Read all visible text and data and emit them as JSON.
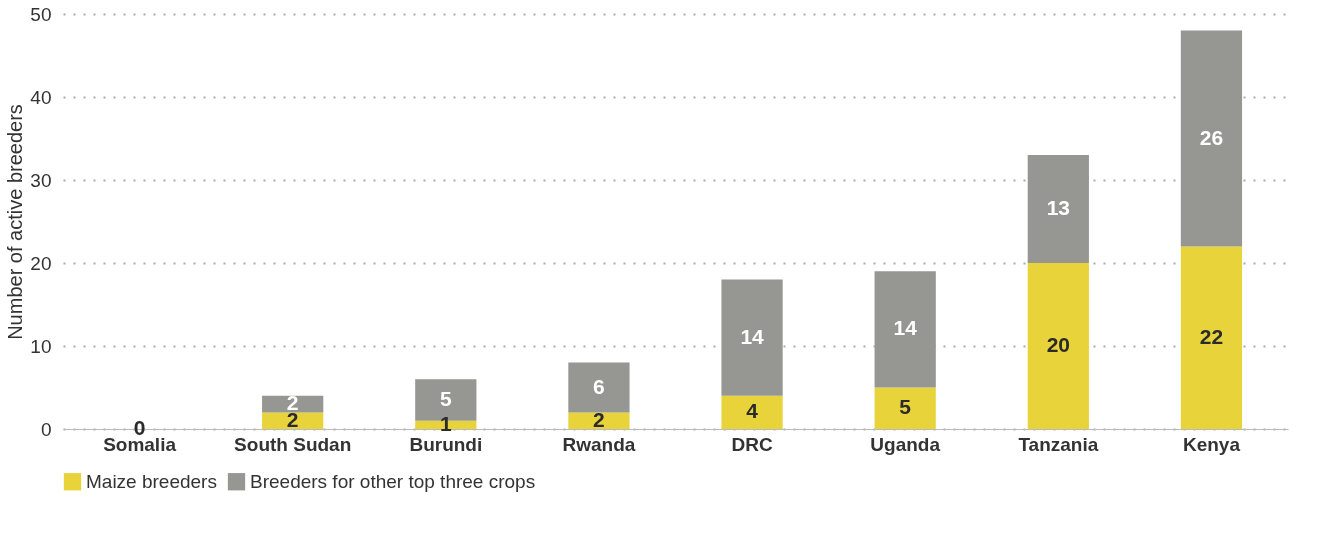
{
  "chart_data": {
    "type": "bar",
    "stacked": true,
    "ylabel": "Number of active breeders",
    "categories": [
      "Somalia",
      "South Sudan",
      "Burundi",
      "Rwanda",
      "DRC",
      "Uganda",
      "Tanzania",
      "Kenya"
    ],
    "series": [
      {
        "name": "Maize breeders",
        "color": "#e8d43a",
        "values": [
          0,
          2,
          1,
          2,
          4,
          5,
          20,
          22
        ],
        "value_labels": [
          "0",
          "2",
          "1",
          "2",
          "4",
          "5",
          "20",
          "22"
        ]
      },
      {
        "name": "Breeders for other top three crops",
        "color": "#969793",
        "values": [
          0,
          2,
          5,
          6,
          14,
          14,
          13,
          26
        ],
        "value_labels": [
          null,
          "2",
          "5",
          "6",
          "14",
          "14",
          "13",
          "26"
        ]
      }
    ],
    "ylim": [
      0,
      50
    ],
    "yticks": [
      0,
      10,
      20,
      30,
      40,
      50
    ],
    "grid": "y",
    "legend": "bottom"
  }
}
